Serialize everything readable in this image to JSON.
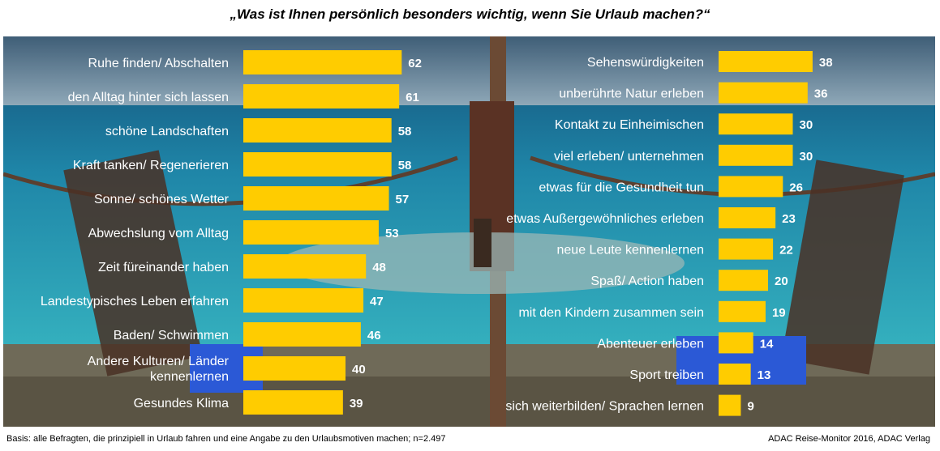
{
  "title": "„Was ist Ihnen persönlich besonders wichtig, wenn Sie Urlaub machen?“",
  "footer": {
    "basis": "Basis: alle Befragten, die prinzipiell in Urlaub fahren und eine Angabe zu den Urlaubsmotiven machen; n=2.497",
    "source": "ADAC Reise-Monitor 2016, ADAC Verlag"
  },
  "colors": {
    "bar": "#FFCC00",
    "label": "#ffffff",
    "sea": "#1d9fb3",
    "sky": "#5f7f96"
  },
  "chart_data": [
    {
      "type": "bar",
      "orientation": "horizontal",
      "categories": [
        "Ruhe finden/ Abschalten",
        "den Alltag hinter sich lassen",
        "schöne Landschaften",
        "Kraft tanken/ Regenerieren",
        "Sonne/ schönes Wetter",
        "Abwechslung vom Alltag",
        "Zeit füreinander haben",
        "Landestypisches Leben erfahren",
        "Baden/ Schwimmen",
        "Andere Kulturen/ Länder kennenlernen",
        "Gesundes Klima"
      ],
      "values": [
        62,
        61,
        58,
        58,
        57,
        53,
        48,
        47,
        46,
        40,
        39
      ]
    },
    {
      "type": "bar",
      "orientation": "horizontal",
      "categories": [
        "Sehenswürdigkeiten",
        "unberührte Natur erleben",
        "Kontakt zu Einheimischen",
        "viel erleben/ unternehmen",
        "etwas für die Gesundheit tun",
        "etwas Außergewöhnliches erleben",
        "neue Leute kennenlernen",
        "Spaß/ Action haben",
        "mit den Kindern zusammen sein",
        "Abenteuer erleben",
        "Sport treiben",
        "sich weiterbilden/ Sprachen lernen"
      ],
      "values": [
        38,
        36,
        30,
        30,
        26,
        23,
        22,
        20,
        19,
        14,
        13,
        9
      ]
    }
  ]
}
